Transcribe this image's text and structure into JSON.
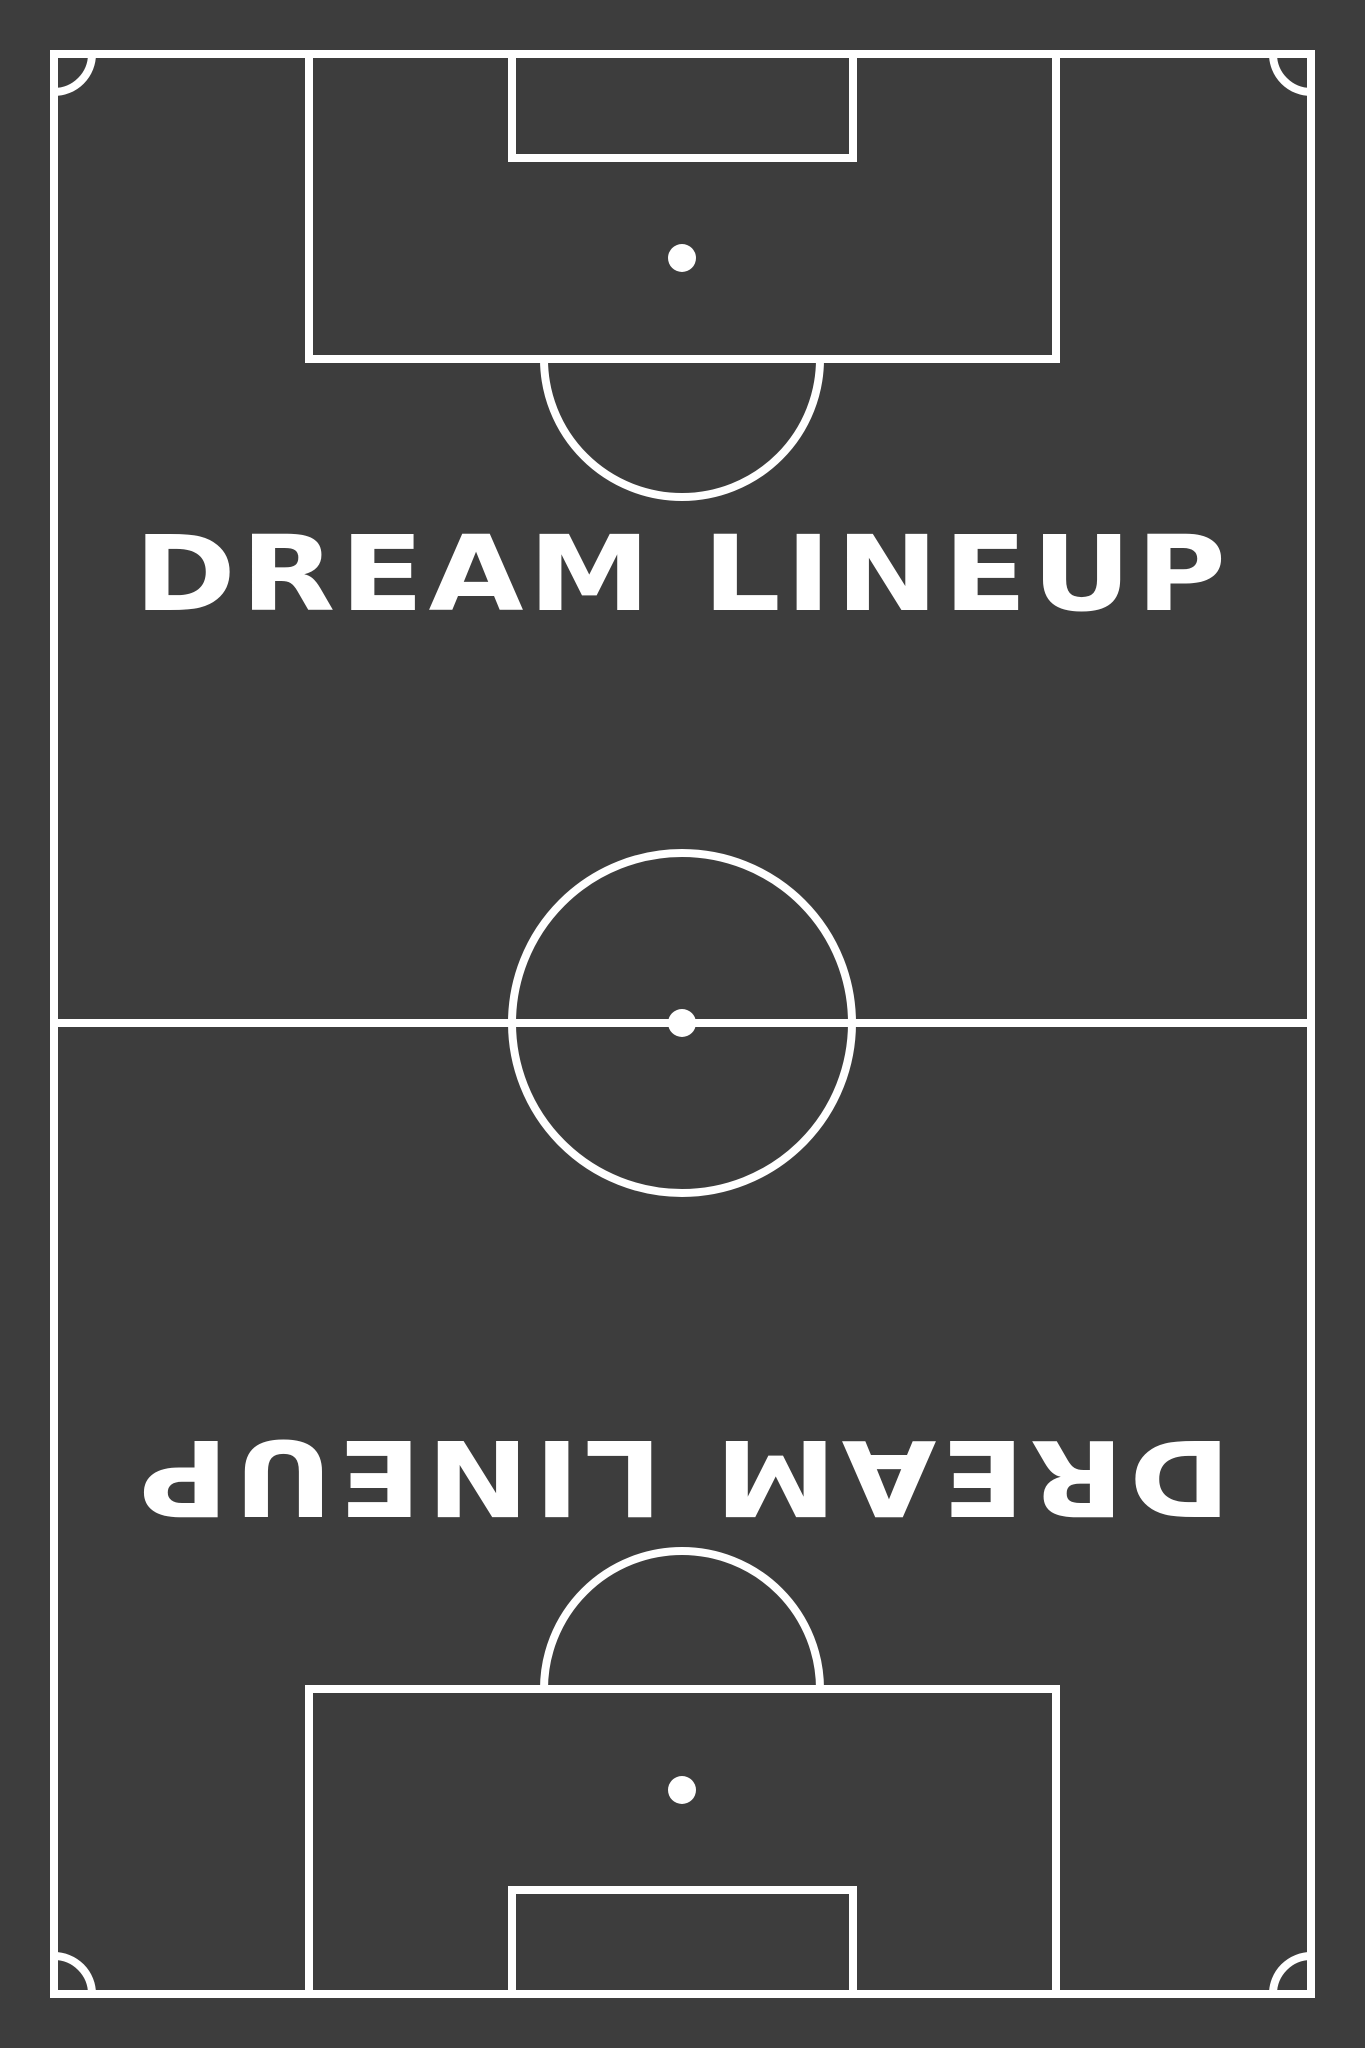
{
  "pitch": {
    "background_color": "#3d3d3d",
    "line_color": "#ffffff",
    "orientation": "vertical"
  },
  "titles": {
    "top": "DREAM LINEUP",
    "bottom_inverted": "DREAM LINEUP"
  }
}
